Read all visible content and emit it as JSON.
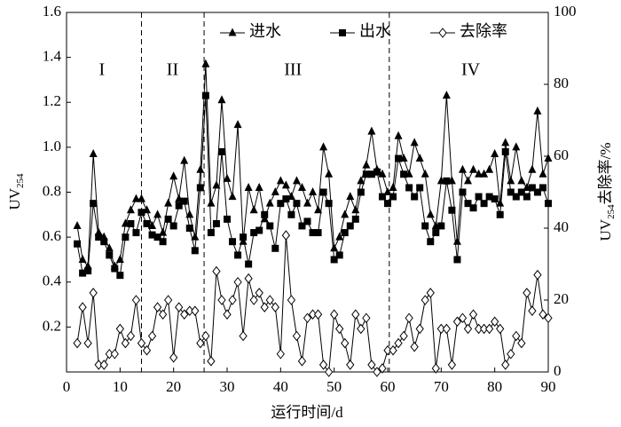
{
  "chart_data": {
    "type": "line",
    "xlabel": "运行时间/d",
    "ylabel": [
      "UV",
      "254"
    ],
    "y2label": [
      "UV",
      "254",
      "去除率/%"
    ],
    "x": [
      2,
      3,
      4,
      5,
      6,
      7,
      8,
      9,
      10,
      11,
      12,
      13,
      14,
      15,
      16,
      17,
      18,
      19,
      20,
      21,
      22,
      23,
      24,
      25,
      26,
      27,
      28,
      29,
      30,
      31,
      32,
      33,
      34,
      35,
      36,
      37,
      38,
      39,
      40,
      41,
      42,
      43,
      44,
      45,
      46,
      47,
      48,
      49,
      50,
      51,
      52,
      53,
      54,
      55,
      56,
      57,
      58,
      59,
      60,
      61,
      62,
      63,
      64,
      65,
      66,
      67,
      68,
      69,
      70,
      71,
      72,
      73,
      74,
      75,
      76,
      77,
      78,
      79,
      80,
      81,
      82,
      83,
      84,
      85,
      86,
      87,
      88,
      89,
      90
    ],
    "series": [
      {
        "name": "进水",
        "color": "#000000",
        "marker": "triangle",
        "values": [
          0.65,
          0.5,
          0.47,
          0.97,
          0.62,
          0.6,
          0.55,
          0.47,
          0.5,
          0.66,
          0.72,
          0.77,
          0.77,
          0.72,
          0.65,
          0.7,
          0.62,
          0.75,
          0.87,
          0.77,
          0.94,
          0.7,
          0.6,
          0.9,
          1.37,
          0.75,
          0.83,
          1.21,
          0.86,
          0.78,
          1.1,
          0.58,
          0.82,
          0.72,
          0.82,
          0.68,
          0.75,
          0.8,
          0.85,
          0.83,
          0.78,
          0.85,
          0.82,
          0.75,
          0.8,
          0.72,
          1.0,
          0.88,
          0.55,
          0.6,
          0.7,
          0.78,
          0.72,
          0.85,
          0.92,
          1.07,
          0.9,
          0.88,
          0.8,
          0.82,
          1.05,
          0.95,
          0.88,
          1.02,
          0.95,
          0.88,
          0.7,
          0.65,
          0.85,
          1.23,
          0.85,
          0.58,
          0.9,
          0.85,
          0.9,
          0.88,
          0.88,
          0.9,
          0.97,
          0.75,
          1.02,
          0.85,
          1.0,
          0.85,
          0.82,
          0.9,
          1.16,
          0.88,
          0.95
        ]
      },
      {
        "name": "出水",
        "color": "#000000",
        "marker": "square",
        "values": [
          0.57,
          0.44,
          0.45,
          0.75,
          0.6,
          0.58,
          0.52,
          0.46,
          0.43,
          0.6,
          0.66,
          0.62,
          0.71,
          0.66,
          0.61,
          0.6,
          0.58,
          0.68,
          0.65,
          0.74,
          0.76,
          0.64,
          0.54,
          0.82,
          1.23,
          0.62,
          0.66,
          0.98,
          0.68,
          0.58,
          0.52,
          0.6,
          0.48,
          0.62,
          0.63,
          0.7,
          0.65,
          0.55,
          0.75,
          0.77,
          0.7,
          0.75,
          0.65,
          0.67,
          0.62,
          0.62,
          0.8,
          0.75,
          0.5,
          0.52,
          0.62,
          0.65,
          0.68,
          0.8,
          0.88,
          0.88,
          0.89,
          0.78,
          0.75,
          0.78,
          0.95,
          0.88,
          0.82,
          0.78,
          0.82,
          0.65,
          0.58,
          0.62,
          0.65,
          0.85,
          0.72,
          0.5,
          0.8,
          0.75,
          0.73,
          0.78,
          0.75,
          0.78,
          0.77,
          0.7,
          0.98,
          0.8,
          0.78,
          0.8,
          0.78,
          0.82,
          0.8,
          0.82,
          0.75
        ]
      },
      {
        "name": "去除率",
        "color": "#000000",
        "marker": "diamond",
        "axis": "y2",
        "values": [
          8,
          18,
          8,
          22,
          2,
          2,
          5,
          5,
          12,
          8,
          10,
          20,
          8,
          6,
          10,
          18,
          16,
          20,
          4,
          18,
          16,
          17,
          17,
          8,
          10,
          3,
          28,
          20,
          16,
          20,
          25,
          10,
          26,
          20,
          22,
          18,
          20,
          18,
          5,
          38,
          20,
          10,
          3,
          15,
          16,
          16,
          2,
          0,
          16,
          12,
          8,
          2,
          16,
          12,
          15,
          2,
          0,
          1,
          6,
          6,
          8,
          10,
          15,
          7,
          12,
          20,
          22,
          1,
          12,
          12,
          2,
          14,
          15,
          12,
          16,
          12,
          12,
          12,
          14,
          12,
          2,
          5,
          10,
          8,
          22,
          17,
          27,
          16,
          15
        ]
      }
    ],
    "xlim": [
      0,
      90
    ],
    "xticks": [
      0,
      10,
      20,
      30,
      40,
      50,
      60,
      70,
      80,
      90
    ],
    "ylim": [
      0,
      1.6
    ],
    "yticks": [
      0.2,
      0.4,
      0.6,
      0.8,
      {
        "value": 1,
        "label": "1.0"
      },
      1.2,
      1.4,
      1.6
    ],
    "y2lim": [
      0,
      100
    ],
    "y2ticks": [
      0,
      20,
      40,
      60,
      80,
      100
    ],
    "vlines": [
      14,
      25.7,
      60.3
    ],
    "annotations": [
      {
        "text": "I",
        "x": 6.6,
        "y": 1.34
      },
      {
        "text": "II",
        "x": 19.8,
        "y": 1.34
      },
      {
        "text": "III",
        "x": 42.3,
        "y": 1.34
      },
      {
        "text": "IV",
        "x": 75.5,
        "y": 1.34
      }
    ],
    "legend": "upper center",
    "grid": false
  }
}
